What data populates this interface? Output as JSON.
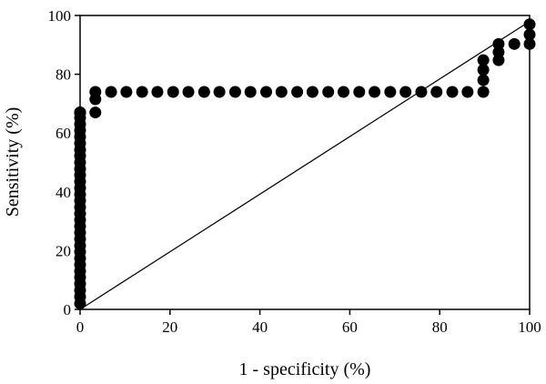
{
  "chart_data": {
    "type": "scatter",
    "title": "",
    "xlabel": "1 - specificity (%)",
    "ylabel": "Sensitivity (%)",
    "xlim": [
      0,
      100
    ],
    "ylim": [
      0,
      100
    ],
    "x_ticks": [
      "0",
      "20",
      "40",
      "60",
      "80",
      "100"
    ],
    "y_ticks": [
      "0",
      "20",
      "40",
      "60",
      "80",
      "100"
    ],
    "grid": false,
    "legend": "none",
    "marker_color": "#000000",
    "reference_line": [
      [
        0,
        0
      ],
      [
        100,
        98
      ]
    ],
    "series": [
      {
        "x": [
          0,
          0,
          0,
          0,
          0,
          0,
          0,
          0,
          0,
          0,
          0,
          0,
          0,
          0,
          0,
          0,
          0,
          0,
          0,
          0,
          0,
          0,
          0,
          0,
          0,
          0,
          0,
          0,
          0,
          0,
          0,
          0,
          0,
          0,
          3.4,
          3.4,
          3.4,
          6.9,
          10.3,
          13.8,
          17.2,
          20.7,
          24.1,
          27.6,
          31,
          34.5,
          37.9,
          41.4,
          44.8,
          48.3,
          51.7,
          55.2,
          58.6,
          62.1,
          65.5,
          69,
          72.4,
          75.9,
          79.3,
          82.8,
          86.2,
          89.7,
          89.7,
          89.7,
          89.7,
          93.1,
          93.1,
          93.1,
          96.6,
          100,
          100,
          100
        ],
        "y": [
          2,
          4.3,
          6.5,
          8.7,
          10.9,
          13,
          15.2,
          17.4,
          19.6,
          21.7,
          23.9,
          26.1,
          28.3,
          30.4,
          32.6,
          34.8,
          37,
          39.1,
          41.3,
          43.5,
          45.7,
          47.8,
          50,
          52.2,
          54.3,
          56.5,
          58.7,
          60.9,
          63,
          65.2,
          67,
          67,
          67,
          67,
          67,
          71.5,
          74,
          74,
          74,
          74,
          74,
          74,
          74,
          74,
          74,
          74,
          74,
          74,
          74,
          74,
          74,
          74,
          74,
          74,
          74,
          74,
          74,
          74,
          74,
          74,
          74,
          74,
          78,
          81.5,
          84.8,
          84.8,
          87.5,
          90.3,
          90.3,
          90.3,
          93.5,
          97
        ]
      }
    ]
  }
}
